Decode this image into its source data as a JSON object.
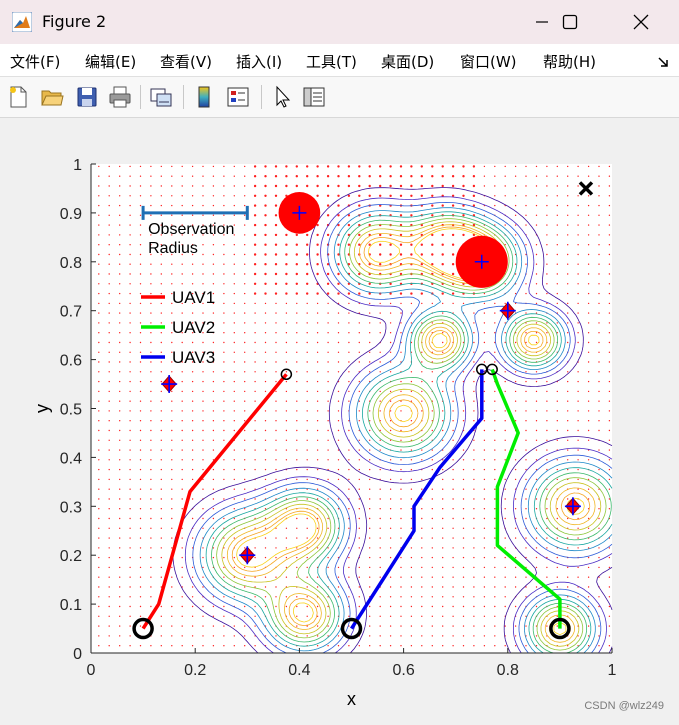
{
  "window": {
    "title": "Figure 2"
  },
  "menu": {
    "items": [
      "文件(F)",
      "编辑(E)",
      "查看(V)",
      "插入(I)",
      "工具(T)",
      "桌面(D)",
      "窗口(W)",
      "帮助(H)"
    ]
  },
  "toolbar": {
    "icons": [
      "new-figure-icon",
      "open-file-icon",
      "save-icon",
      "print-icon",
      "link-plot-icon",
      "colorbar-icon",
      "legend-icon",
      "pointer-icon",
      "property-inspector-icon"
    ]
  },
  "chart_data": {
    "type": "scatter",
    "xlabel": "x",
    "ylabel": "y",
    "xlim": [
      0,
      1
    ],
    "ylim": [
      0,
      1
    ],
    "xticks": [
      "0",
      "0.2",
      "0.4",
      "0.6",
      "0.8",
      "1"
    ],
    "yticks": [
      "0",
      "0.1",
      "0.2",
      "0.3",
      "0.4",
      "0.5",
      "0.6",
      "0.7",
      "0.8",
      "0.9",
      "1"
    ],
    "observation_label": [
      "Observation",
      "Radius"
    ],
    "observation_radius": [
      0.1,
      0.3,
      0.9
    ],
    "legend": [
      {
        "name": "UAV1",
        "color": "#ff0000"
      },
      {
        "name": "UAV2",
        "color": "#00ee00"
      },
      {
        "name": "UAV3",
        "color": "#0000ee"
      }
    ],
    "series": [
      {
        "name": "UAV1",
        "color": "#ff0000",
        "x": [
          0.1,
          0.13,
          0.19,
          0.375
        ],
        "y": [
          0.05,
          0.1,
          0.33,
          0.57
        ]
      },
      {
        "name": "UAV2",
        "color": "#00ee00",
        "x": [
          0.9,
          0.9,
          0.78,
          0.78,
          0.82,
          0.78,
          0.77
        ],
        "y": [
          0.05,
          0.11,
          0.22,
          0.34,
          0.45,
          0.55,
          0.58
        ]
      },
      {
        "name": "UAV3",
        "color": "#0000ee",
        "x": [
          0.5,
          0.62,
          0.62,
          0.67,
          0.75,
          0.75
        ],
        "y": [
          0.05,
          0.25,
          0.3,
          0.38,
          0.48,
          0.58
        ]
      }
    ],
    "start_points": [
      [
        0.1,
        0.05
      ],
      [
        0.5,
        0.05
      ],
      [
        0.9,
        0.05
      ]
    ],
    "end_points": [
      [
        0.375,
        0.57
      ],
      [
        0.75,
        0.58
      ],
      [
        0.77,
        0.58
      ]
    ],
    "targets": [
      [
        0.15,
        0.55
      ],
      [
        0.3,
        0.2
      ],
      [
        0.8,
        0.7
      ],
      [
        0.925,
        0.3
      ]
    ],
    "threats": [
      {
        "x": 0.4,
        "y": 0.9,
        "r": 0.04
      },
      {
        "x": 0.75,
        "y": 0.8,
        "r": 0.05
      }
    ],
    "goal": [
      0.95,
      0.95
    ],
    "contour_peaks": [
      {
        "x": 0.3,
        "y": 0.2,
        "s": 0.06
      },
      {
        "x": 0.41,
        "y": 0.26,
        "s": 0.05
      },
      {
        "x": 0.41,
        "y": 0.08,
        "s": 0.05
      },
      {
        "x": 0.6,
        "y": 0.49,
        "s": 0.06
      },
      {
        "x": 0.55,
        "y": 0.82,
        "s": 0.055
      },
      {
        "x": 0.68,
        "y": 0.83,
        "s": 0.05
      },
      {
        "x": 0.75,
        "y": 0.8,
        "s": 0.05
      },
      {
        "x": 0.67,
        "y": 0.64,
        "s": 0.04
      },
      {
        "x": 0.85,
        "y": 0.64,
        "s": 0.04
      },
      {
        "x": 0.93,
        "y": 0.3,
        "s": 0.06
      },
      {
        "x": 0.9,
        "y": 0.05,
        "s": 0.045
      }
    ]
  },
  "watermark": "CSDN @wlz249"
}
